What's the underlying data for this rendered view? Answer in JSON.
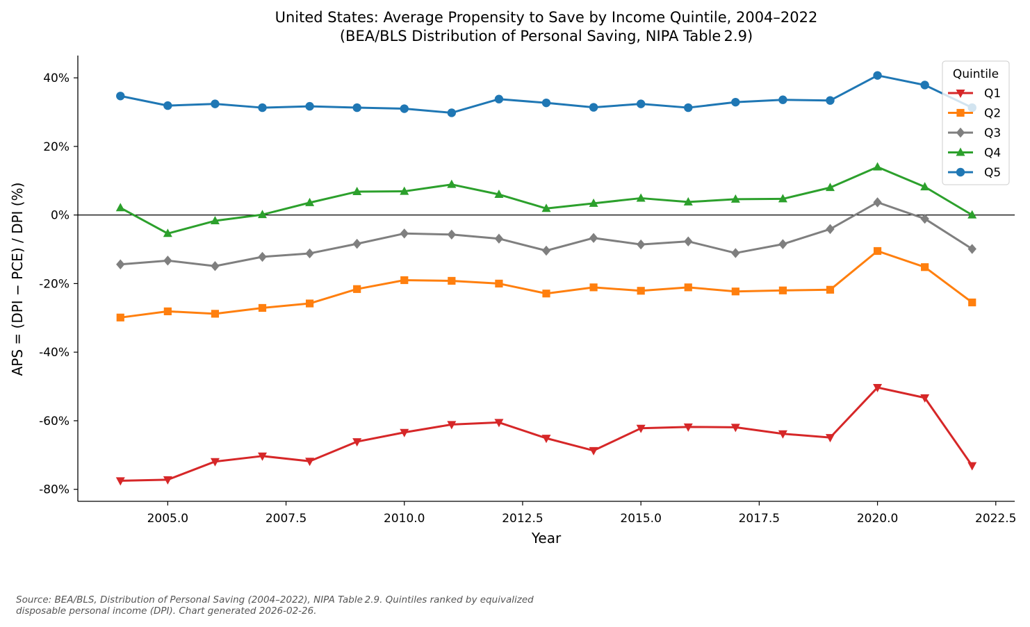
{
  "chart_data": {
    "type": "line",
    "title": "United States: Average Propensity to Save by Income Quintile, 2004–2022",
    "subtitle": "(BEA/BLS Distribution of Personal Saving, NIPA Table 2.9)",
    "xlabel": "Year",
    "ylabel": "APS = (DPI − PCE) / DPI  (%)",
    "xlim": [
      2003.1,
      2022.9
    ],
    "ylim": [
      -83.5,
      46.5
    ],
    "xticks": [
      2005.0,
      2007.5,
      2010.0,
      2012.5,
      2015.0,
      2017.5,
      2020.0,
      2022.5
    ],
    "xtick_labels": [
      "2005.0",
      "2007.5",
      "2010.0",
      "2012.5",
      "2015.0",
      "2017.5",
      "2020.0",
      "2022.5"
    ],
    "yticks": [
      40,
      20,
      0,
      -20,
      -40,
      -60,
      -80
    ],
    "ytick_labels": [
      "40%",
      "20%",
      "0%",
      "-20%",
      "-40%",
      "-60%",
      "-80%"
    ],
    "zero_line": true,
    "legend_title": "Quintile",
    "legend_position": "top-right",
    "x": [
      2004,
      2005,
      2006,
      2007,
      2008,
      2009,
      2010,
      2011,
      2012,
      2013,
      2014,
      2015,
      2016,
      2017,
      2018,
      2019,
      2020,
      2021,
      2022
    ],
    "series": [
      {
        "name": "Q1",
        "color": "#d62728",
        "marker": "triangle-down",
        "values": [
          -77.5,
          -77.2,
          -71.9,
          -70.3,
          -71.8,
          -66.1,
          -63.4,
          -61.1,
          -60.5,
          -65.1,
          -68.7,
          -62.2,
          -61.8,
          -61.9,
          -63.8,
          -64.9,
          -50.3,
          -53.3,
          -73.1
        ]
      },
      {
        "name": "Q2",
        "color": "#ff7f0e",
        "marker": "square",
        "values": [
          -29.9,
          -28.1,
          -28.8,
          -27.1,
          -25.8,
          -21.6,
          -19.0,
          -19.2,
          -20.0,
          -22.9,
          -21.1,
          -22.1,
          -21.1,
          -22.3,
          -22.0,
          -21.8,
          -10.5,
          -15.2,
          -25.5
        ]
      },
      {
        "name": "Q3",
        "color": "#7f7f7f",
        "marker": "diamond",
        "values": [
          -14.4,
          -13.3,
          -14.9,
          -12.2,
          -11.2,
          -8.4,
          -5.4,
          -5.7,
          -6.9,
          -10.4,
          -6.7,
          -8.6,
          -7.7,
          -11.1,
          -8.5,
          -4.1,
          3.7,
          -1.1,
          -9.9
        ]
      },
      {
        "name": "Q4",
        "color": "#2ca02c",
        "marker": "triangle-up",
        "values": [
          2.1,
          -5.4,
          -1.7,
          0.1,
          3.6,
          6.8,
          6.9,
          8.9,
          6.0,
          1.9,
          3.4,
          4.9,
          3.8,
          4.6,
          4.7,
          8.0,
          14.0,
          8.2,
          0.0
        ]
      },
      {
        "name": "Q5",
        "color": "#1f77b4",
        "marker": "circle",
        "values": [
          34.7,
          31.9,
          32.4,
          31.3,
          31.7,
          31.3,
          31.0,
          29.8,
          33.8,
          32.7,
          31.4,
          32.4,
          31.3,
          32.9,
          33.6,
          33.4,
          40.7,
          37.9,
          31.3
        ]
      }
    ]
  },
  "footer": {
    "source_line1": "Source: BEA/BLS, Distribution of Personal Saving (2004–2022), NIPA Table 2.9.  Quintiles ranked by equivalized",
    "source_line2": "disposable personal income (DPI).  Chart generated 2026-02-26."
  }
}
